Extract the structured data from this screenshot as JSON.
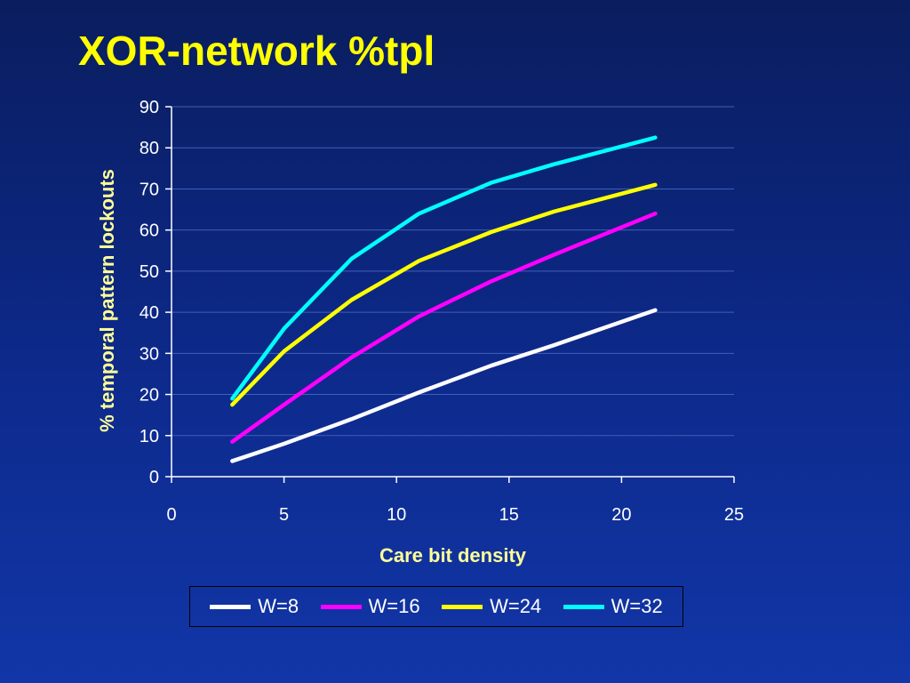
{
  "slide": {
    "title": "XOR-network %tpl"
  },
  "chart_data": {
    "type": "line",
    "xlabel": "Care bit density",
    "ylabel": "% temporal pattern lockouts",
    "xlim": [
      0,
      25
    ],
    "ylim": [
      0,
      90
    ],
    "x_ticks": [
      0,
      5,
      10,
      15,
      20,
      25
    ],
    "y_ticks": [
      0,
      10,
      20,
      30,
      40,
      50,
      60,
      70,
      80,
      90
    ],
    "grid": "horizontal",
    "legend": "bottom",
    "series": [
      {
        "name": "W=8",
        "color": "#ffffff",
        "x": [
          2.7,
          5.0,
          8.0,
          11.0,
          14.2,
          17.0,
          21.5
        ],
        "y": [
          3.8,
          8.0,
          14.0,
          20.5,
          27.0,
          32.0,
          40.5
        ]
      },
      {
        "name": "W=16",
        "color": "#ff00ff",
        "x": [
          2.7,
          5.0,
          8.0,
          11.0,
          14.2,
          17.0,
          21.5
        ],
        "y": [
          8.5,
          17.5,
          29.0,
          39.0,
          47.5,
          54.0,
          64.0
        ]
      },
      {
        "name": "W=24",
        "color": "#ffff00",
        "x": [
          2.7,
          5.0,
          8.0,
          11.0,
          14.2,
          17.0,
          21.5
        ],
        "y": [
          17.5,
          30.5,
          43.0,
          52.5,
          59.5,
          64.5,
          71.0
        ]
      },
      {
        "name": "W=32",
        "color": "#00ffff",
        "x": [
          2.7,
          5.0,
          8.0,
          11.0,
          14.2,
          17.0,
          21.5
        ],
        "y": [
          19.0,
          36.0,
          53.0,
          64.0,
          71.5,
          76.0,
          82.5
        ]
      }
    ]
  }
}
